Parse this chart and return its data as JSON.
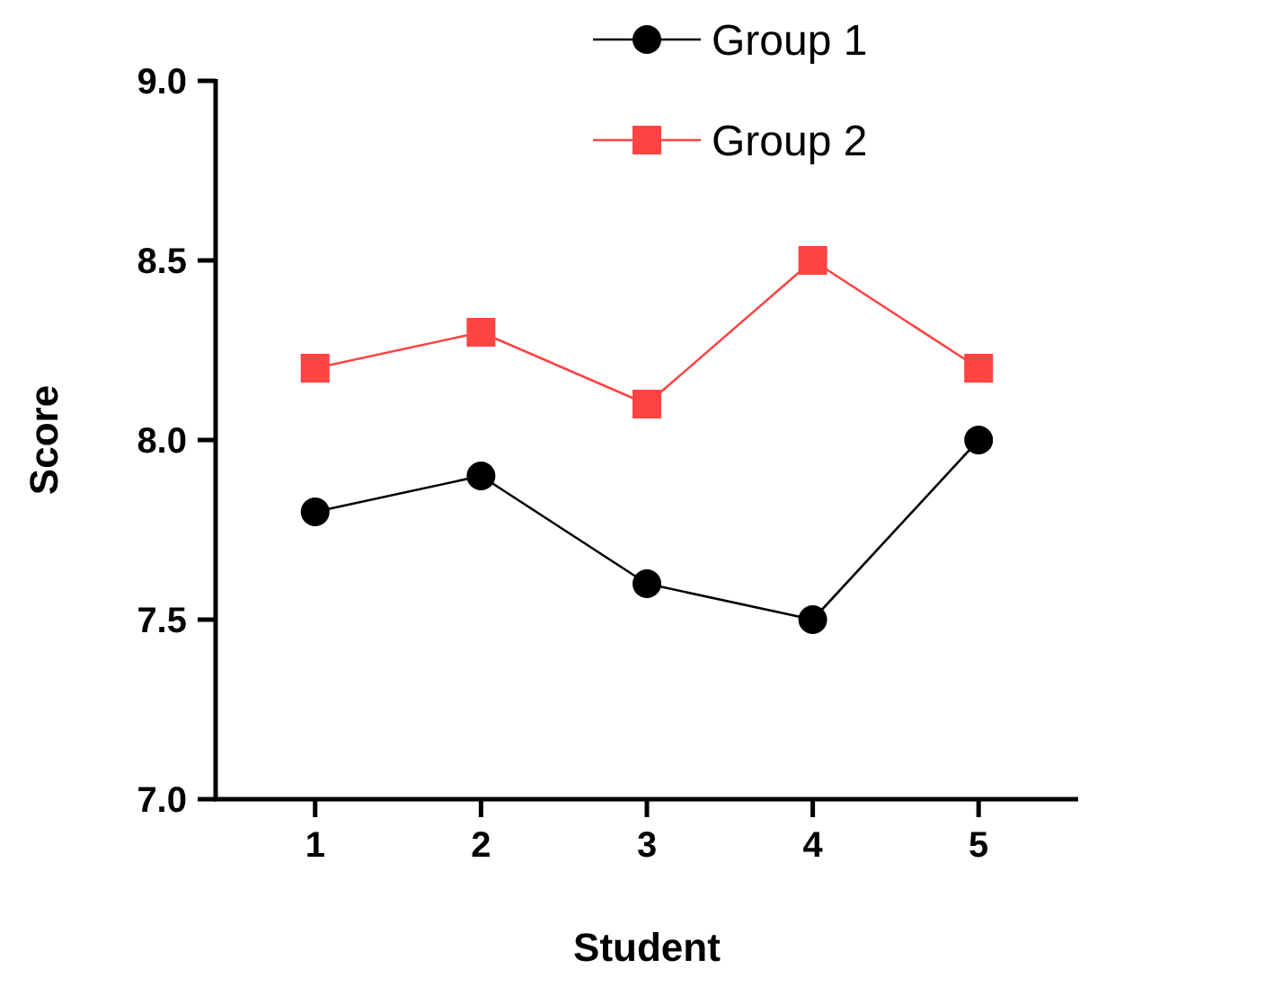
{
  "chart_data": {
    "type": "line",
    "xlabel": "Student",
    "ylabel": "Score",
    "categories": [
      "1",
      "2",
      "3",
      "4",
      "5"
    ],
    "series": [
      {
        "name": "Group 1",
        "color": "#000000",
        "marker": "circle",
        "values": [
          7.8,
          7.9,
          7.6,
          7.5,
          8.0
        ]
      },
      {
        "name": "Group 2",
        "color": "#ff4444",
        "marker": "square",
        "values": [
          8.2,
          8.3,
          8.1,
          8.5,
          8.2
        ]
      }
    ],
    "ylim": [
      7.0,
      9.0
    ],
    "yticks": [
      {
        "value": 7.0,
        "label": "7.0"
      },
      {
        "value": 7.5,
        "label": "7.5"
      },
      {
        "value": 8.0,
        "label": "8.0"
      },
      {
        "value": 8.5,
        "label": "8.5"
      },
      {
        "value": 9.0,
        "label": "9.0"
      }
    ],
    "grid": false,
    "legend": "top"
  }
}
